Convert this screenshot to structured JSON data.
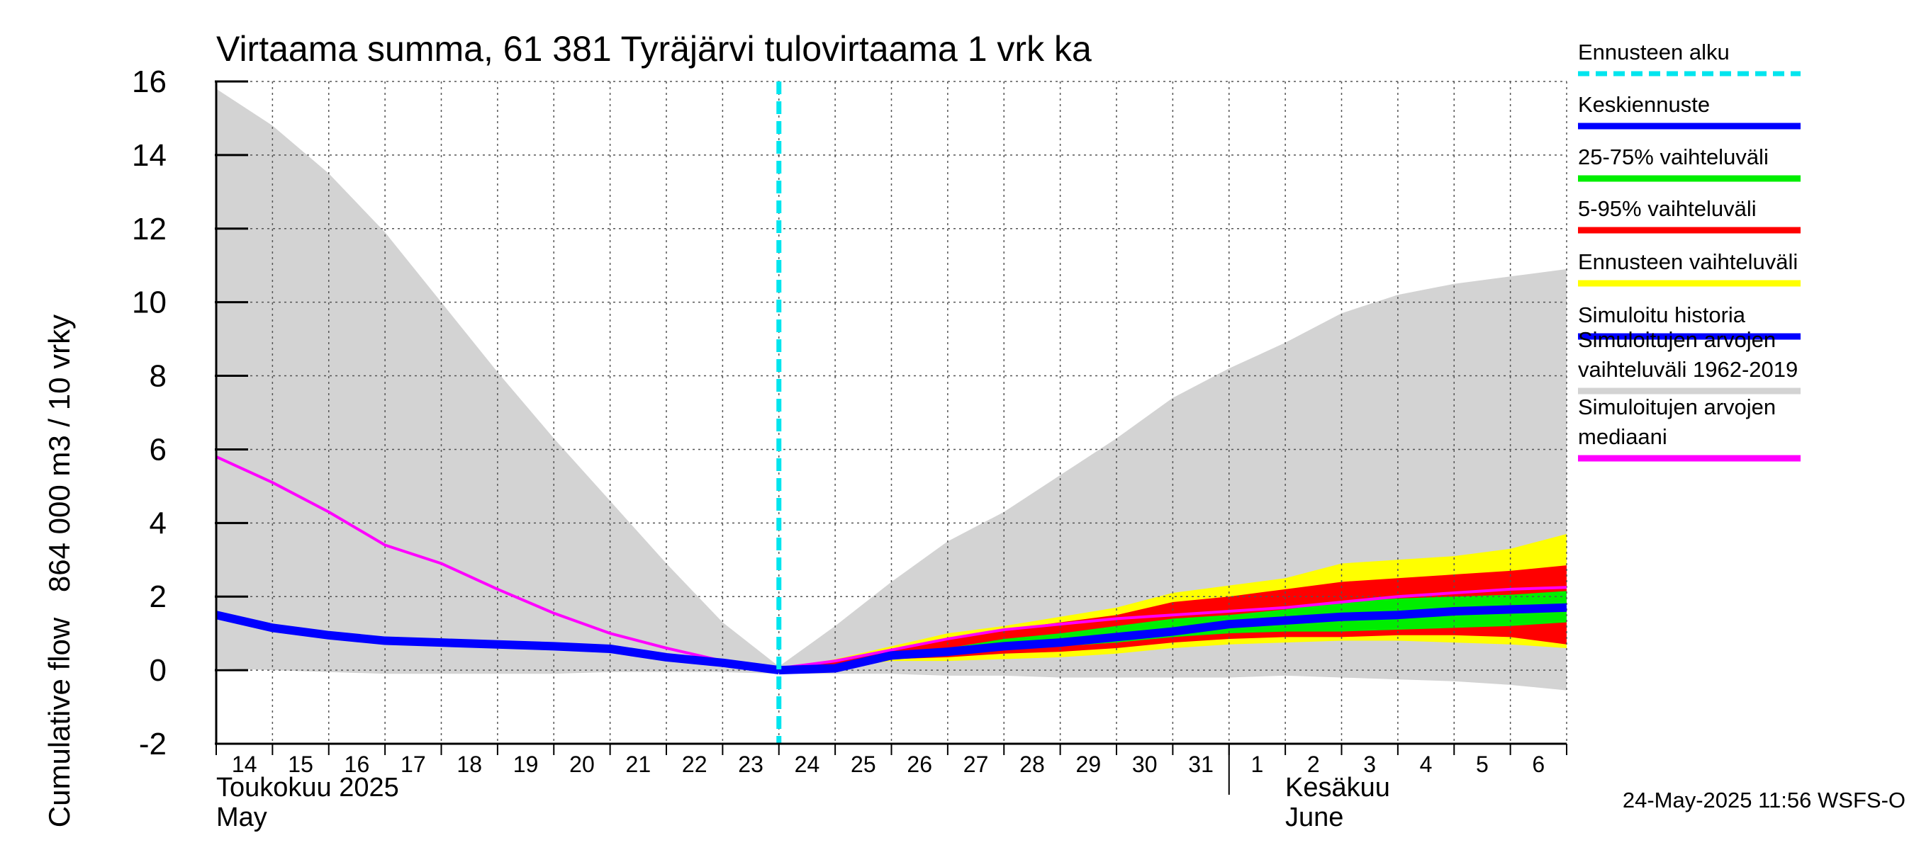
{
  "title": "Virtaama summa, 61 381 Tyräjärvi tulovirtaama 1 vrk ka",
  "ylabel_top": "864 000 m3 / 10 vrky",
  "ylabel_bottom": "Cumulative flow",
  "timestamp": "24-May-2025 11:56 WSFS-O",
  "months": [
    {
      "fi": "Toukokuu  2025",
      "en": "May"
    },
    {
      "fi": "Kesäkuu",
      "en": "June"
    }
  ],
  "legend": [
    {
      "label": "Ennusteen alku",
      "color": "#00e5ee",
      "style": "dashed"
    },
    {
      "label": "Keskiennuste",
      "color": "#0000ff",
      "style": "solid"
    },
    {
      "label": "25-75% vaihteluväli",
      "color": "#00ee00",
      "style": "solid"
    },
    {
      "label": "5-95% vaihteluväli",
      "color": "#ff0000",
      "style": "solid"
    },
    {
      "label": "Ennusteen vaihteluväli",
      "color": "#ffff00",
      "style": "solid"
    },
    {
      "label": "Simuloitu historia",
      "color": "#0000ff",
      "style": "solid"
    },
    {
      "label": "Simuloitujen arvojen\nvaihteluväli 1962-2019",
      "color": "#d3d3d3",
      "style": "solid"
    },
    {
      "label": "Simuloitujen arvojen\nmediaani",
      "color": "#ff00ff",
      "style": "solid"
    }
  ],
  "chart_data": {
    "type": "line",
    "title": "Virtaama summa, 61 381 Tyräjärvi tulovirtaama 1 vrk ka",
    "ylabel": "Cumulative flow 864 000 m3 / 10 vrky",
    "ylim": [
      -2,
      16
    ],
    "yticks": [
      -2,
      0,
      2,
      4,
      6,
      8,
      10,
      12,
      14,
      16
    ],
    "xlim": [
      0,
      24
    ],
    "x_tick_labels": [
      "14",
      "15",
      "16",
      "17",
      "18",
      "19",
      "20",
      "21",
      "22",
      "23",
      "24",
      "25",
      "26",
      "27",
      "28",
      "29",
      "30",
      "31",
      "1",
      "2",
      "3",
      "4",
      "5",
      "6"
    ],
    "forecast_start": 10,
    "grid": true,
    "series": [
      {
        "name": "Simuloitujen arvojen vaihteluväli 1962-2019",
        "kind": "band",
        "color": "#d3d3d3",
        "x": [
          0,
          1,
          2,
          3,
          4,
          5,
          6,
          7,
          8,
          9,
          10,
          11,
          12,
          13,
          14,
          15,
          16,
          17,
          18,
          19,
          20,
          21,
          22,
          23,
          24
        ],
        "upper": [
          15.8,
          14.8,
          13.5,
          11.9,
          10.0,
          8.1,
          6.3,
          4.6,
          2.9,
          1.3,
          0.1,
          1.2,
          2.4,
          3.5,
          4.3,
          5.3,
          6.3,
          7.4,
          8.2,
          8.9,
          9.7,
          10.2,
          10.5,
          10.7,
          10.9
        ],
        "lower": [
          0.05,
          0.0,
          -0.05,
          -0.1,
          -0.1,
          -0.1,
          -0.1,
          -0.05,
          -0.05,
          -0.05,
          -0.1,
          -0.1,
          -0.1,
          -0.15,
          -0.15,
          -0.2,
          -0.2,
          -0.2,
          -0.2,
          -0.15,
          -0.2,
          -0.25,
          -0.3,
          -0.4,
          -0.55
        ]
      },
      {
        "name": "Ennusteen vaihteluväli",
        "kind": "band",
        "color": "#ffff00",
        "x": [
          10,
          11,
          12,
          13,
          14,
          15,
          16,
          17,
          18,
          19,
          20,
          21,
          22,
          23,
          24
        ],
        "upper": [
          0.0,
          0.3,
          0.65,
          1.0,
          1.2,
          1.45,
          1.7,
          2.1,
          2.3,
          2.5,
          2.9,
          3.0,
          3.1,
          3.3,
          3.7
        ],
        "lower": [
          0.0,
          0.05,
          0.25,
          0.25,
          0.3,
          0.35,
          0.45,
          0.6,
          0.7,
          0.75,
          0.8,
          0.8,
          0.75,
          0.7,
          0.6
        ]
      },
      {
        "name": "5-95% vaihteluväli",
        "kind": "band",
        "color": "#ff0000",
        "x": [
          10,
          11,
          12,
          13,
          14,
          15,
          16,
          17,
          18,
          19,
          20,
          21,
          22,
          23,
          24
        ],
        "upper": [
          0.0,
          0.25,
          0.55,
          0.85,
          1.1,
          1.3,
          1.5,
          1.85,
          2.0,
          2.2,
          2.4,
          2.5,
          2.6,
          2.7,
          2.85
        ],
        "lower": [
          0.0,
          0.1,
          0.3,
          0.35,
          0.45,
          0.5,
          0.6,
          0.75,
          0.85,
          0.9,
          0.9,
          0.95,
          0.95,
          0.9,
          0.7
        ]
      },
      {
        "name": "25-75% vaihteluväli",
        "kind": "band",
        "color": "#00ee00",
        "x": [
          10,
          11,
          12,
          13,
          14,
          15,
          16,
          17,
          18,
          19,
          20,
          21,
          22,
          23,
          24
        ],
        "upper": [
          0.0,
          0.15,
          0.45,
          0.6,
          0.85,
          1.0,
          1.2,
          1.4,
          1.5,
          1.65,
          1.85,
          1.95,
          2.0,
          2.05,
          2.15
        ],
        "lower": [
          0.0,
          0.1,
          0.35,
          0.45,
          0.55,
          0.65,
          0.75,
          0.9,
          1.0,
          1.05,
          1.05,
          1.1,
          1.15,
          1.2,
          1.3
        ]
      },
      {
        "name": "Simuloitujen arvojen mediaani",
        "kind": "line",
        "color": "#ff00ff",
        "x": [
          0,
          1,
          2,
          3,
          4,
          5,
          6,
          7,
          8,
          9,
          10,
          11,
          12,
          13,
          14,
          15,
          16,
          17,
          18,
          19,
          20,
          21,
          22,
          23,
          24
        ],
        "y": [
          5.8,
          5.1,
          4.3,
          3.4,
          2.9,
          2.2,
          1.55,
          1.0,
          0.6,
          0.25,
          0.05,
          0.25,
          0.55,
          0.85,
          1.1,
          1.25,
          1.4,
          1.5,
          1.6,
          1.7,
          1.85,
          2.0,
          2.1,
          2.2,
          2.25
        ]
      },
      {
        "name": "Simuloitu historia",
        "kind": "line",
        "color": "#0000ff",
        "x": [
          0,
          1,
          2,
          3,
          4,
          5,
          6,
          7,
          8,
          9,
          10
        ],
        "y": [
          1.5,
          1.15,
          0.95,
          0.8,
          0.75,
          0.7,
          0.65,
          0.58,
          0.35,
          0.2,
          0.0
        ]
      },
      {
        "name": "Keskiennuste",
        "kind": "line",
        "color": "#0000ff",
        "x": [
          10,
          11,
          12,
          13,
          14,
          15,
          16,
          17,
          18,
          19,
          20,
          21,
          22,
          23,
          24
        ],
        "y": [
          0.0,
          0.05,
          0.4,
          0.5,
          0.65,
          0.75,
          0.9,
          1.05,
          1.25,
          1.35,
          1.45,
          1.5,
          1.6,
          1.65,
          1.7
        ]
      }
    ]
  }
}
